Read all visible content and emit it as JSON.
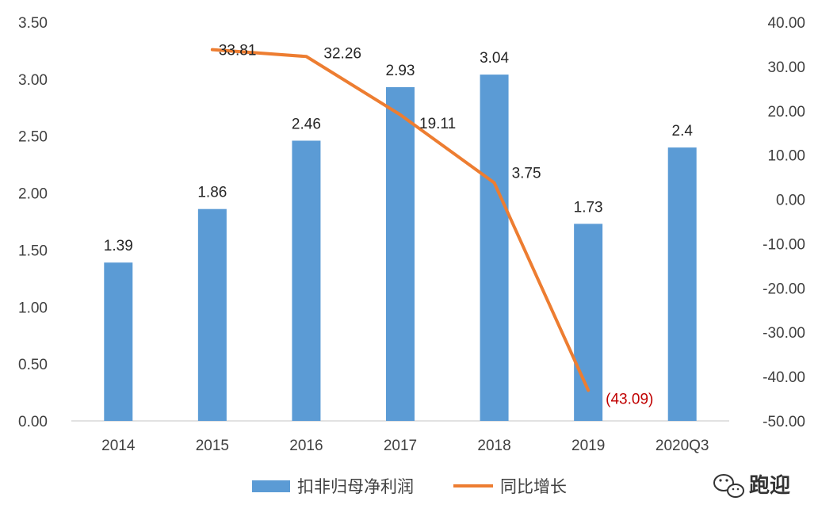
{
  "chart_data": {
    "type": "bar+line",
    "categories": [
      "2014",
      "2015",
      "2016",
      "2017",
      "2018",
      "2019",
      "2020Q3"
    ],
    "bar_series": {
      "name": "扣非归母净利润",
      "color": "#5b9bd5",
      "values": [
        1.39,
        1.86,
        2.46,
        2.93,
        3.04,
        1.73,
        2.4
      ],
      "labels": [
        "1.39",
        "1.86",
        "2.46",
        "2.93",
        "3.04",
        "1.73",
        "2.4"
      ]
    },
    "line_series": {
      "name": "同比增长",
      "color": "#ed7d31",
      "x": [
        "2015",
        "2016",
        "2017",
        "2018",
        "2019"
      ],
      "values": [
        33.81,
        32.26,
        19.11,
        3.75,
        -43.09
      ],
      "labels": [
        "33.81",
        "32.26",
        "19.11",
        "3.75",
        "(43.09)"
      ],
      "negative_label_color": "#c00000"
    },
    "y_left": {
      "ylim": [
        0,
        3.5
      ],
      "ticks": [
        "0.00",
        "0.50",
        "1.00",
        "1.50",
        "2.00",
        "2.50",
        "3.00",
        "3.50"
      ]
    },
    "y_right": {
      "ylim": [
        -50,
        40
      ],
      "ticks": [
        "-50.00",
        "-40.00",
        "-30.00",
        "-20.00",
        "-10.00",
        "0.00",
        "10.00",
        "20.00",
        "30.00",
        "40.00"
      ]
    },
    "grid": false,
    "legend_position": "bottom-center"
  },
  "watermark": {
    "icon": "wechat-icon",
    "text": "跑迎"
  }
}
